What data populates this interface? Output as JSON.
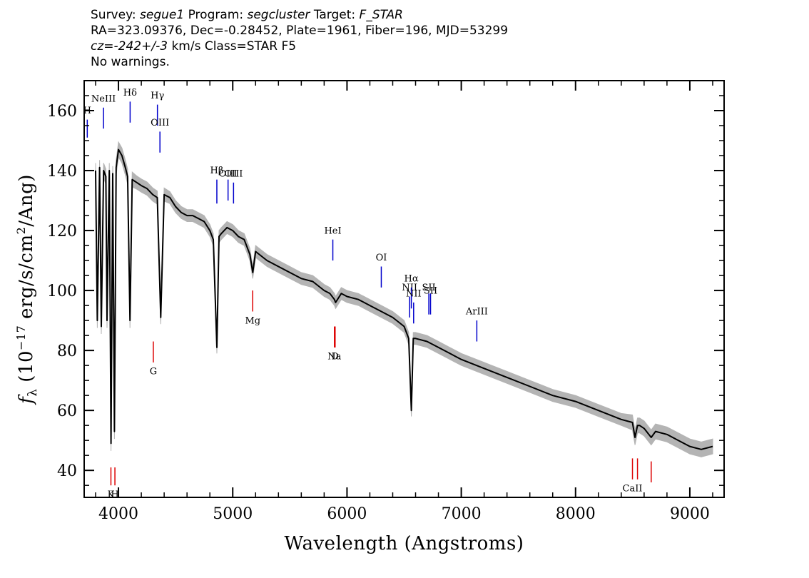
{
  "header": {
    "line1": {
      "survey_key": "Survey:",
      "survey_value": "segue1",
      "program_key": "Program:",
      "program_value": "segcluster",
      "target_key": "Target:",
      "target_value": "F_STAR"
    },
    "line2": "RA=323.09376, Dec=-0.28452, Plate=1961, Fiber=196, MJD=53299",
    "line3": {
      "cz_key": "cz=",
      "cz_value": "-242+/-3",
      "rest": "km/s Class=STAR F5"
    },
    "line4": "No warnings."
  },
  "chart_data": {
    "type": "line",
    "xlabel": "Wavelength (Angstroms)",
    "ylabel": "f_λ (10^-17 erg/s/cm^2/Ang)",
    "xlim": [
      3700,
      9300
    ],
    "ylim": [
      31,
      170
    ],
    "x_ticks": [
      4000,
      5000,
      6000,
      7000,
      8000,
      9000
    ],
    "y_ticks": [
      40,
      60,
      80,
      100,
      120,
      140,
      160
    ],
    "grid": false,
    "colors": {
      "spectrum": "#000000",
      "error": "#b4b4b4",
      "emission_lines": "#0000cc",
      "absorption_lines": "#dd0000"
    },
    "series": [
      {
        "x": [
          3800,
          3815,
          3835,
          3850,
          3870,
          3890,
          3900,
          3920,
          3935,
          3950,
          3965,
          3980,
          4000,
          4030,
          4060,
          4080,
          4101,
          4120,
          4160,
          4200,
          4250,
          4300,
          4340,
          4370,
          4400,
          4450,
          4500,
          4550,
          4600,
          4650,
          4700,
          4750,
          4800,
          4830,
          4861,
          4880,
          4900,
          4950,
          5000,
          5050,
          5100,
          5150,
          5175,
          5200,
          5300,
          5400,
          5500,
          5600,
          5700,
          5800,
          5850,
          5890,
          5900,
          5950,
          6000,
          6100,
          6200,
          6300,
          6400,
          6500,
          6540,
          6563,
          6580,
          6600,
          6700,
          6800,
          6900,
          7000,
          7200,
          7400,
          7600,
          7800,
          8000,
          8200,
          8400,
          8498,
          8520,
          8542,
          8560,
          8600,
          8662,
          8700,
          8800,
          8900,
          9000,
          9100,
          9200
        ],
        "values": [
          140,
          90,
          141,
          88,
          140,
          138,
          90,
          140,
          49,
          139,
          53,
          141,
          147,
          145,
          141,
          138,
          90,
          137,
          136,
          135,
          134,
          132,
          131,
          91,
          132,
          131,
          128,
          126,
          125,
          125,
          124,
          123,
          120,
          117,
          81,
          118,
          119,
          121,
          120,
          118,
          117,
          112,
          106,
          113,
          110,
          108,
          106,
          104,
          103,
          100,
          99,
          97,
          96,
          99,
          98,
          97,
          95,
          93,
          91,
          88,
          84,
          60,
          84,
          84,
          83,
          81,
          79,
          77,
          74,
          71,
          68,
          65,
          63,
          60,
          57,
          56,
          51,
          55,
          55,
          54,
          51,
          53,
          52,
          50,
          48,
          47,
          48
        ],
        "errors": [
          2.5,
          2.5,
          2.5,
          2.5,
          2.5,
          2.5,
          2.5,
          2.5,
          2.5,
          2.5,
          2.5,
          2.5,
          2.5,
          2.5,
          2.5,
          2.5,
          2.5,
          2.5,
          2.2,
          2.2,
          2.2,
          2.2,
          2.2,
          2.2,
          2.2,
          2.0,
          2.0,
          2.0,
          2.0,
          2.0,
          2.0,
          2.0,
          2.0,
          2.0,
          2.0,
          2.0,
          2.0,
          2.0,
          2.0,
          2.0,
          2.0,
          2.0,
          2.0,
          2.0,
          2.0,
          2.0,
          2.0,
          2.0,
          2.0,
          2.0,
          2.0,
          2.0,
          2.0,
          2.0,
          2.0,
          2.0,
          2.0,
          2.0,
          2.0,
          2.0,
          2.0,
          2.0,
          2.0,
          2.0,
          2.0,
          2.0,
          2.0,
          2.0,
          2.0,
          2.0,
          2.0,
          2.0,
          2.0,
          2.0,
          2.0,
          2.5,
          2.5,
          2.5,
          2.5,
          2.5,
          2.5,
          2.5,
          2.5,
          2.5,
          2.5,
          2.5,
          2.5
        ]
      }
    ],
    "emission_lines": [
      {
        "label": "H",
        "wavelength": 3727,
        "y_from": 151,
        "y_to": 157,
        "label_y": 159
      },
      {
        "label": "NeIII",
        "wavelength": 3869,
        "y_from": 154,
        "y_to": 161,
        "label_y": 163
      },
      {
        "label": "Hδ",
        "wavelength": 4102,
        "y_from": 156,
        "y_to": 163,
        "label_y": 165
      },
      {
        "label": "Hγ",
        "wavelength": 4341,
        "y_from": 155,
        "y_to": 162,
        "label_y": 164
      },
      {
        "label": "OIII",
        "wavelength": 4363,
        "y_from": 146,
        "y_to": 153,
        "label_y": 155
      },
      {
        "label": "Hβ",
        "wavelength": 4861,
        "y_from": 129,
        "y_to": 137,
        "label_y": 139
      },
      {
        "label": "OIII",
        "wavelength": 4959,
        "y_from": 130,
        "y_to": 137,
        "label_y": 138
      },
      {
        "label": "OIII",
        "wavelength": 5007,
        "y_from": 129,
        "y_to": 136,
        "label_y": 138
      },
      {
        "label": "HeI",
        "wavelength": 5876,
        "y_from": 110,
        "y_to": 117,
        "label_y": 119
      },
      {
        "label": "OI",
        "wavelength": 6300,
        "y_from": 101,
        "y_to": 108,
        "label_y": 110
      },
      {
        "label": "NII",
        "wavelength": 6548,
        "y_from": 91,
        "y_to": 98,
        "label_y": 100
      },
      {
        "label": "Hα",
        "wavelength": 6563,
        "y_from": 94,
        "y_to": 101,
        "label_y": 103
      },
      {
        "label": "NII",
        "wavelength": 6583,
        "y_from": 89,
        "y_to": 96,
        "label_y": 98
      },
      {
        "label": "SII",
        "wavelength": 6716,
        "y_from": 92,
        "y_to": 99,
        "label_y": 100
      },
      {
        "label": "SII",
        "wavelength": 6731,
        "y_from": 92,
        "y_to": 99,
        "label_y": 99
      },
      {
        "label": "ArIII",
        "wavelength": 7136,
        "y_from": 83,
        "y_to": 90,
        "label_y": 92
      }
    ],
    "absorption_lines": [
      {
        "label": "K",
        "wavelength": 3934,
        "y_from": 35,
        "y_to": 41,
        "label_y": 31
      },
      {
        "label": "H",
        "wavelength": 3969,
        "y_from": 35,
        "y_to": 41,
        "label_y": 31
      },
      {
        "label": "G",
        "wavelength": 4305,
        "y_from": 76,
        "y_to": 83,
        "label_y": 72
      },
      {
        "label": "Mg",
        "wavelength": 5175,
        "y_from": 93,
        "y_to": 100,
        "label_y": 89
      },
      {
        "label": "Na",
        "wavelength": 5890,
        "y_from": 81,
        "y_to": 88,
        "label_y": 77
      },
      {
        "label": "D",
        "wavelength": 5896,
        "y_from": 81,
        "y_to": 88,
        "label_y": 77
      },
      {
        "label": "CaII",
        "wavelength": 8498,
        "y_from": 37,
        "y_to": 44,
        "label_y": 33
      },
      {
        "label": "",
        "wavelength": 8542,
        "y_from": 37,
        "y_to": 44,
        "label_y": 33
      },
      {
        "label": "",
        "wavelength": 8662,
        "y_from": 36,
        "y_to": 43,
        "label_y": 33
      }
    ]
  }
}
